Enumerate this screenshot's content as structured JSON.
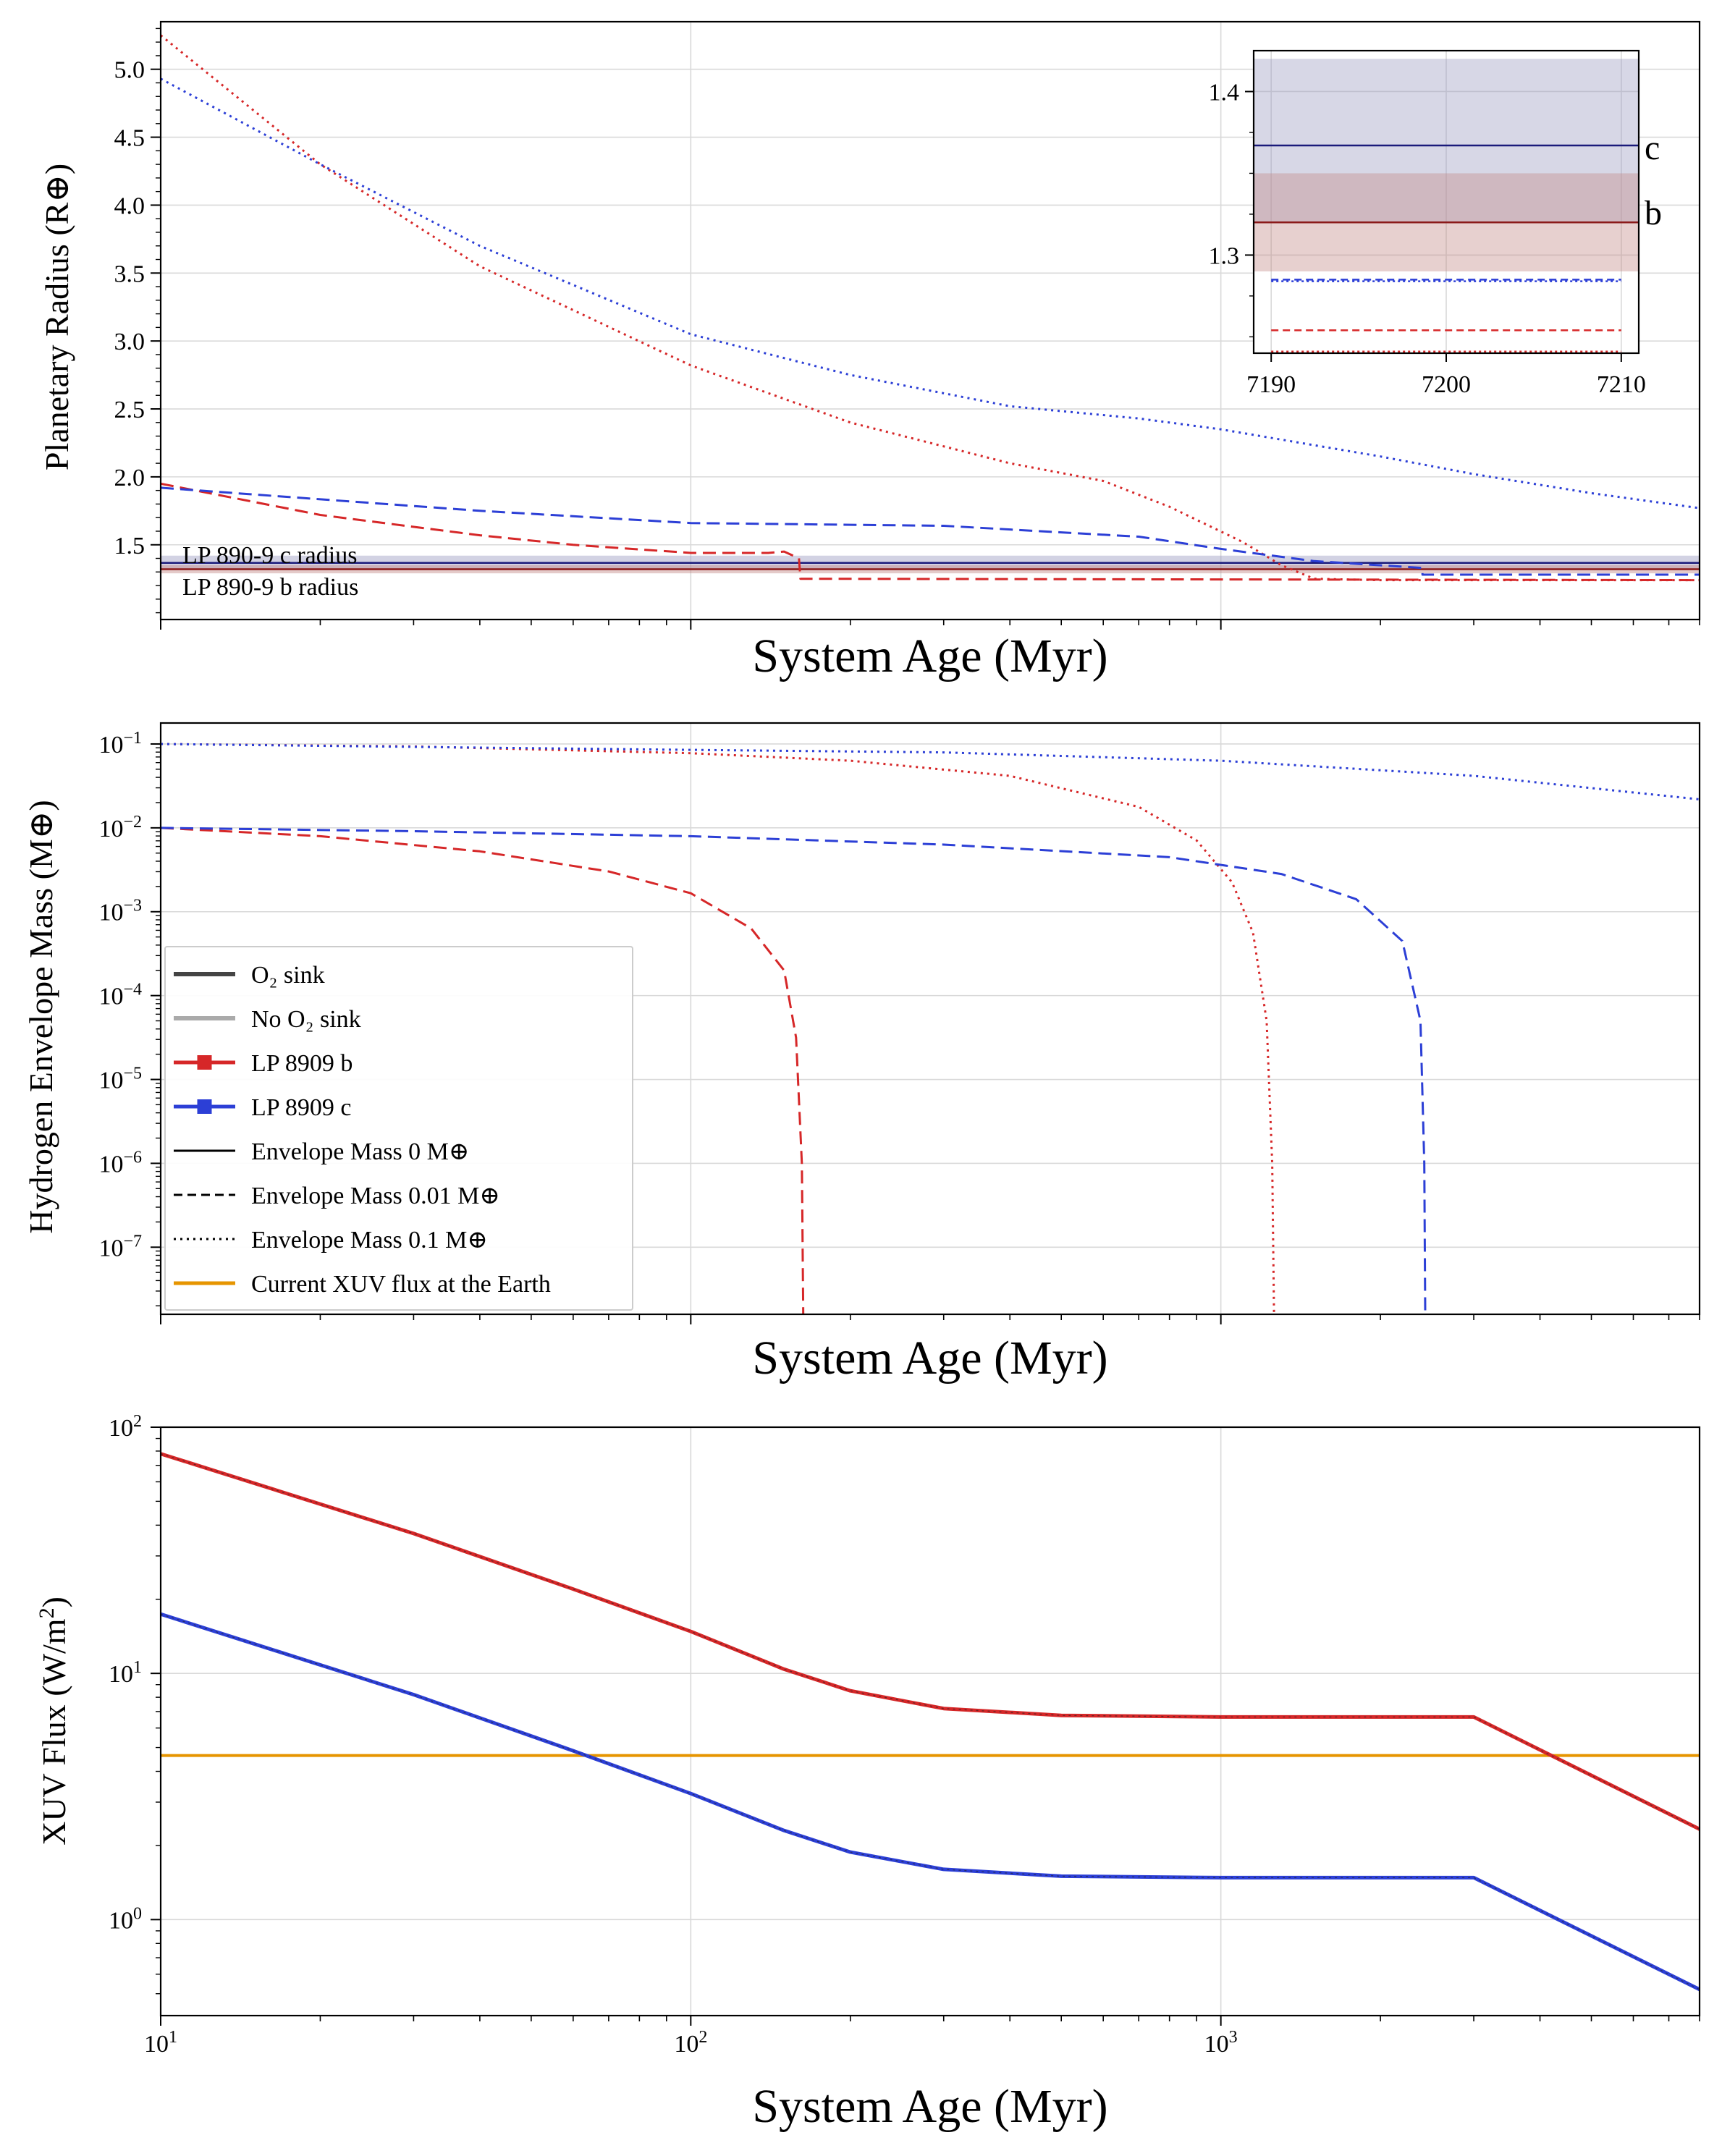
{
  "colors": {
    "b": "#d62728",
    "c": "#2c3fd6",
    "b_band": "#c48a88",
    "c_band": "#9c9cc0",
    "xuv_earth": "#e69500",
    "o2_sink": "#444444",
    "no_o2_sink": "#aaaaaa"
  },
  "chart_data": [
    {
      "id": "radius",
      "type": "line",
      "xscale": "log",
      "xlim": [
        10,
        8000
      ],
      "ylim": [
        0.95,
        5.35
      ],
      "ylabel": "Planetary Radius (R⊕)",
      "xlabel": "System Age (Myr)",
      "yticks": [
        "1.5",
        "2.0",
        "2.5",
        "3.0",
        "3.5",
        "4.0",
        "4.5",
        "5.0"
      ],
      "yticks_values": [
        1.5,
        2.0,
        2.5,
        3.0,
        3.5,
        4.0,
        4.5,
        5.0
      ],
      "annotations": [
        "LP 890-9 c radius",
        "LP 890-9 b radius"
      ],
      "reference_bands": [
        {
          "planet": "c",
          "value": 1.367,
          "lo": 1.32,
          "hi": 1.42
        },
        {
          "planet": "b",
          "value": 1.32,
          "lo": 1.29,
          "hi": 1.35
        }
      ],
      "series": [
        {
          "name": "LP 8909 b, 0.1 M⊕",
          "planet": "b",
          "style": "dotted",
          "x": [
            10,
            20,
            40,
            100,
            200,
            400,
            600,
            800,
            1100,
            1300,
            1500,
            2000,
            8000
          ],
          "y": [
            5.25,
            4.3,
            3.55,
            2.82,
            2.4,
            2.1,
            1.97,
            1.78,
            1.52,
            1.35,
            1.25,
            1.24,
            1.24
          ]
        },
        {
          "name": "LP 8909 c, 0.1 M⊕",
          "planet": "c",
          "style": "dotted",
          "x": [
            10,
            20,
            40,
            100,
            200,
            400,
            700,
            1000,
            2000,
            3000,
            5000,
            8000
          ],
          "y": [
            4.93,
            4.3,
            3.7,
            3.05,
            2.75,
            2.52,
            2.43,
            2.35,
            2.15,
            2.02,
            1.88,
            1.77
          ]
        },
        {
          "name": "LP 8909 b, 0.01 M⊕",
          "planet": "b",
          "style": "dashed",
          "x": [
            10,
            20,
            40,
            60,
            100,
            140,
            150,
            160,
            161,
            8000
          ],
          "y": [
            1.95,
            1.72,
            1.57,
            1.5,
            1.44,
            1.44,
            1.45,
            1.4,
            1.25,
            1.24
          ]
        },
        {
          "name": "LP 8909 c, 0.01 M⊕",
          "planet": "c",
          "style": "dashed",
          "x": [
            10,
            40,
            100,
            300,
            700,
            1000,
            1500,
            2400,
            2401,
            8000
          ],
          "y": [
            1.92,
            1.75,
            1.66,
            1.64,
            1.56,
            1.47,
            1.38,
            1.33,
            1.28,
            1.28
          ]
        }
      ],
      "inset": {
        "xlim": [
          7189,
          7211
        ],
        "ylim": [
          1.24,
          1.425
        ],
        "xticks": [
          "7190",
          "7200",
          "7210"
        ],
        "xticks_values": [
          7190,
          7200,
          7210
        ],
        "yticks": [
          "1.3",
          "1.4"
        ],
        "yticks_values": [
          1.3,
          1.4
        ],
        "labels": [
          "c",
          "b"
        ],
        "lines": [
          {
            "planet": "c",
            "style": "solid",
            "y": 1.367
          },
          {
            "planet": "b",
            "style": "solid",
            "y": 1.32
          },
          {
            "planet": "c",
            "style": "dashed",
            "y": 1.285
          },
          {
            "planet": "c",
            "style": "dotted",
            "y": 1.284
          },
          {
            "planet": "b",
            "style": "dashed",
            "y": 1.254
          },
          {
            "planet": "b",
            "style": "dotted",
            "y": 1.241
          }
        ]
      }
    },
    {
      "id": "envelope",
      "type": "line",
      "xscale": "log",
      "yscale": "log",
      "xlim": [
        10,
        8000
      ],
      "ylim_log10": [
        -7.8,
        -0.75
      ],
      "ylabel": "Hydrogen Envelope Mass (M⊕)",
      "xlabel": "System Age (Myr)",
      "yticks_exponents": [
        "−1",
        "−2",
        "−3",
        "−4",
        "−5",
        "−6",
        "−7"
      ],
      "yticks_log10": [
        -1,
        -2,
        -3,
        -4,
        -5,
        -6,
        -7
      ],
      "ytick_base": "10",
      "series": [
        {
          "name": "LP 8909 b, 0.1 M⊕",
          "planet": "b",
          "style": "dotted",
          "x": [
            10,
            30,
            100,
            200,
            400,
            700,
            900,
            1050,
            1150,
            1220,
            1250,
            1260
          ],
          "ylog": [
            -1.0,
            -1.03,
            -1.11,
            -1.2,
            -1.38,
            -1.75,
            -2.15,
            -2.65,
            -3.25,
            -4.3,
            -6.0,
            -7.8
          ]
        },
        {
          "name": "LP 8909 c, 0.1 M⊕",
          "planet": "c",
          "style": "dotted",
          "x": [
            10,
            50,
            100,
            300,
            1000,
            3000,
            8000
          ],
          "ylog": [
            -1.0,
            -1.05,
            -1.07,
            -1.1,
            -1.2,
            -1.38,
            -1.66
          ]
        },
        {
          "name": "LP 8909 b, 0.01 M⊕",
          "planet": "b",
          "style": "dashed",
          "x": [
            10,
            20,
            40,
            70,
            100,
            130,
            150,
            158,
            162,
            163
          ],
          "ylog": [
            -2.0,
            -2.1,
            -2.28,
            -2.52,
            -2.78,
            -3.2,
            -3.7,
            -4.5,
            -6.0,
            -7.8
          ]
        },
        {
          "name": "LP 8909 c, 0.01 M⊕",
          "planet": "c",
          "style": "dashed",
          "x": [
            10,
            30,
            100,
            300,
            800,
            1300,
            1800,
            2200,
            2380,
            2420,
            2430
          ],
          "ylog": [
            -2.0,
            -2.04,
            -2.1,
            -2.2,
            -2.35,
            -2.55,
            -2.85,
            -3.35,
            -4.3,
            -6.0,
            -7.8
          ]
        }
      ],
      "legend": {
        "position": "lower left",
        "entries": [
          {
            "label": "O₂ sink",
            "kind": "o2"
          },
          {
            "label": "No O₂ sink",
            "kind": "noo2"
          },
          {
            "label": "LP 8909 b",
            "kind": "b"
          },
          {
            "label": "LP 8909 c",
            "kind": "c"
          },
          {
            "label": "Envelope Mass 0 M⊕",
            "kind": "solid"
          },
          {
            "label": "Envelope Mass 0.01 M⊕",
            "kind": "dashed"
          },
          {
            "label": "Envelope Mass 0.1 M⊕",
            "kind": "dotted"
          },
          {
            "label": "Current XUV flux at the Earth",
            "kind": "earth"
          }
        ]
      }
    },
    {
      "id": "xuv",
      "type": "line",
      "xscale": "log",
      "yscale": "log",
      "xlim": [
        10,
        8000
      ],
      "ylim_log10": [
        -0.39,
        2.0
      ],
      "ylabel": "XUV Flux (W/m²)",
      "xlabel": "System Age (Myr)",
      "yticks_exponents": [
        "2",
        "1",
        "0"
      ],
      "yticks_log10": [
        2,
        1,
        0
      ],
      "ytick_base": "10",
      "xticks_exponents": [
        "1",
        "2",
        "3"
      ],
      "xticks_values": [
        10,
        100,
        1000
      ],
      "xtick_base": "10",
      "earth_flux": 4.64,
      "series": [
        {
          "name": "LP 8909 b",
          "planet": "b",
          "x": [
            10,
            30,
            60,
            100,
            150,
            200,
            300,
            500,
            1000,
            3000,
            8000
          ],
          "y": [
            78,
            37,
            22,
            14.8,
            10.4,
            8.5,
            7.2,
            6.75,
            6.65,
            6.65,
            2.33
          ]
        },
        {
          "name": "LP 8909 c",
          "planet": "c",
          "x": [
            10,
            30,
            60,
            100,
            150,
            200,
            300,
            500,
            1000,
            3000,
            8000
          ],
          "y": [
            17.4,
            8.2,
            4.85,
            3.25,
            2.3,
            1.88,
            1.6,
            1.5,
            1.48,
            1.48,
            0.52
          ]
        }
      ]
    }
  ]
}
